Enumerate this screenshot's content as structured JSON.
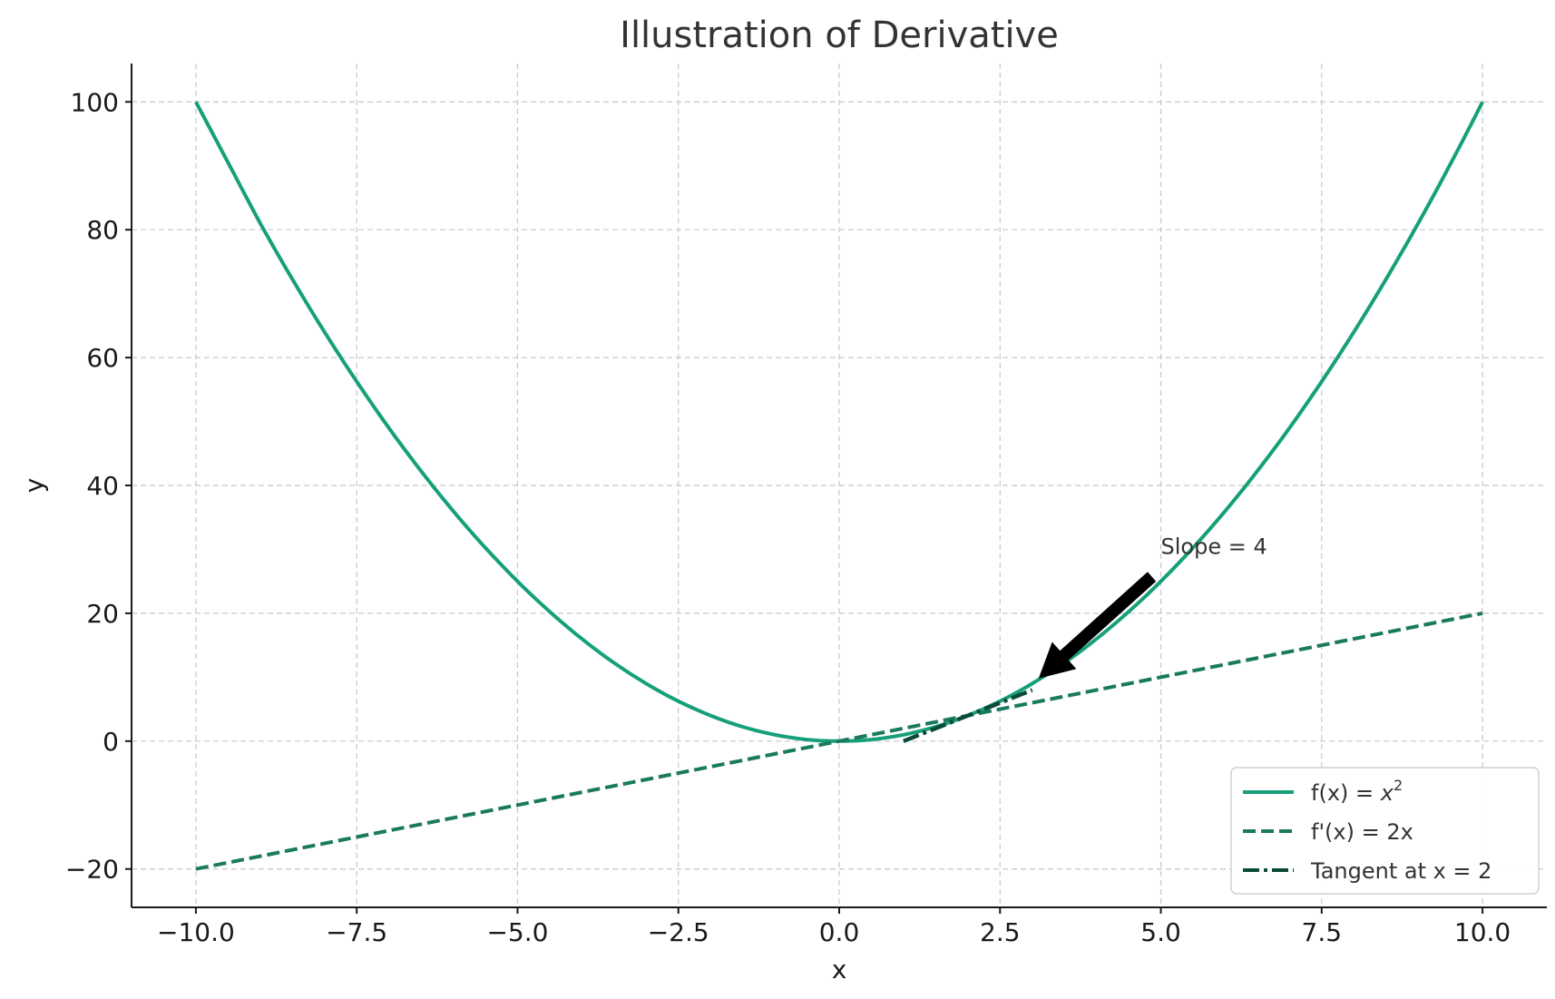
{
  "chart_data": {
    "type": "line",
    "title": "Illustration of Derivative",
    "xlabel": "x",
    "ylabel": "y",
    "xlim": [
      -11,
      11
    ],
    "ylim": [
      -26,
      106
    ],
    "xticks": [
      -10,
      -7.5,
      -5,
      -2.5,
      0,
      2.5,
      5,
      7.5,
      10
    ],
    "xtick_labels": [
      "−10.0",
      "−7.5",
      "−5.0",
      "−2.5",
      "0.0",
      "2.5",
      "5.0",
      "7.5",
      "10.0"
    ],
    "yticks": [
      -20,
      0,
      20,
      40,
      60,
      80,
      100
    ],
    "ytick_labels": [
      "−20",
      "0",
      "20",
      "40",
      "60",
      "80",
      "100"
    ],
    "grid": true,
    "legend_position": "bottom-right",
    "series": [
      {
        "name": "f(x) = x²",
        "legend_base": "f(x) = ",
        "legend_var": "x",
        "legend_sup": "2",
        "style": "solid",
        "color": "#16a07a",
        "x": [
          -10,
          -9,
          -8,
          -7,
          -6,
          -5,
          -4,
          -3,
          -2,
          -1,
          0,
          1,
          2,
          3,
          4,
          5,
          6,
          7,
          8,
          9,
          10
        ],
        "y": [
          100,
          81,
          64,
          49,
          36,
          25,
          16,
          9,
          4,
          1,
          0,
          1,
          4,
          9,
          16,
          25,
          36,
          49,
          64,
          81,
          100
        ]
      },
      {
        "name": "f'(x) = 2x",
        "style": "dashed",
        "color": "#1a7a5e",
        "x": [
          -10,
          0,
          10
        ],
        "y": [
          -20,
          0,
          20
        ]
      },
      {
        "name": "Tangent at x = 2",
        "style": "dashdot",
        "color": "#0b4a3a",
        "x": [
          1,
          3
        ],
        "y": [
          0,
          8
        ]
      }
    ],
    "annotations": [
      {
        "text": "Slope = 4",
        "x": 5,
        "y": 30,
        "arrow_to": [
          3.1,
          9.8
        ]
      }
    ]
  }
}
